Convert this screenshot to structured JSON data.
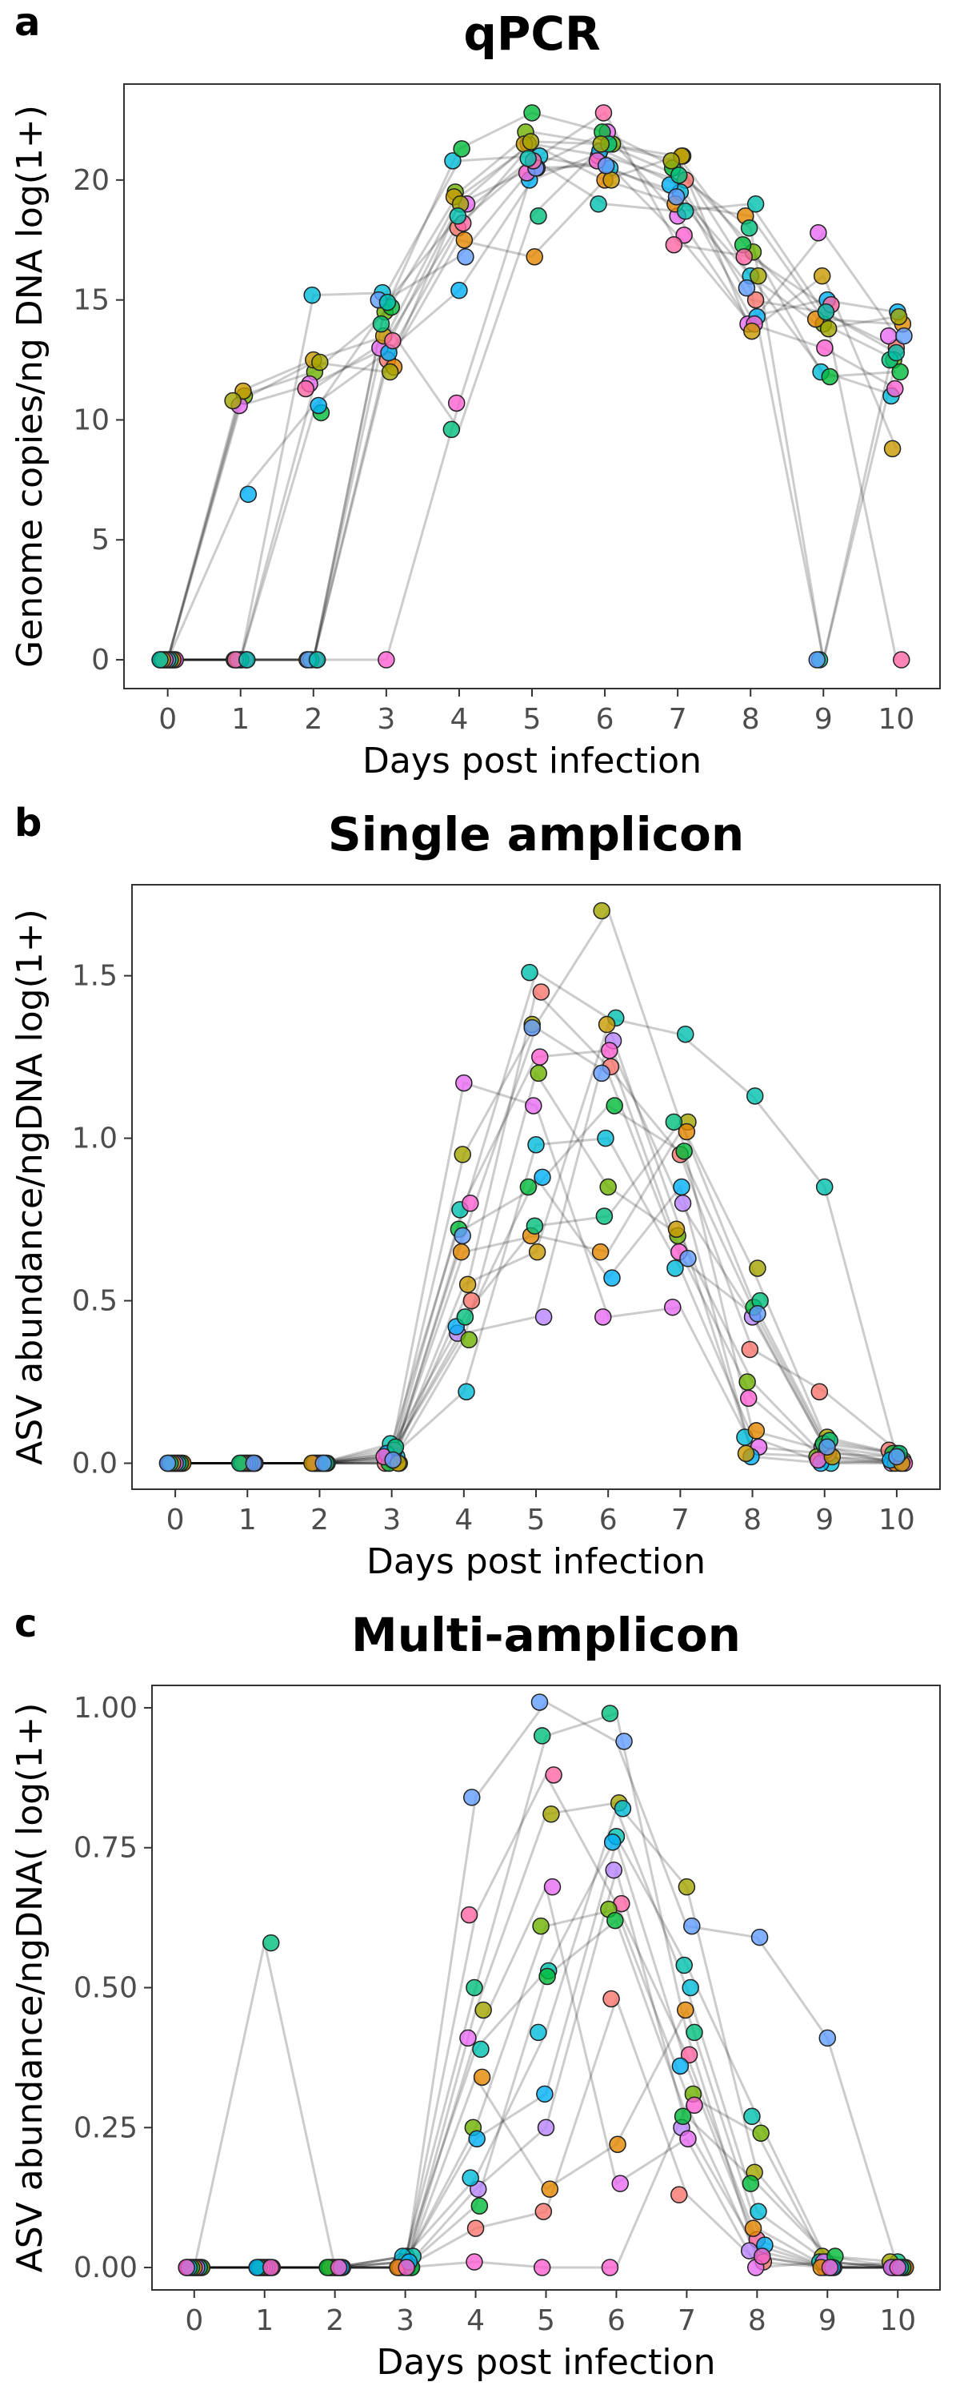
{
  "panels": [
    {
      "letter": "a",
      "title": "qPCR"
    },
    {
      "letter": "b",
      "title": "Single amplicon"
    },
    {
      "letter": "c",
      "title": "Multi-amplicon"
    }
  ],
  "palette": [
    "#f8766d",
    "#e58700",
    "#c99800",
    "#a3a500",
    "#6bb100",
    "#00ba38",
    "#00bf7d",
    "#00c0af",
    "#00bcd8",
    "#00b0f6",
    "#619cff",
    "#b983ff",
    "#e76bf3",
    "#fd61d1",
    "#ff67a4"
  ],
  "chart_data": [
    {
      "type": "line",
      "title": "qPCR",
      "xlabel": "Days post infection",
      "ylabel": "Genome copies/ng DNA log(1+)",
      "xlim": [
        -0.6,
        10.6
      ],
      "ylim": [
        -1.2,
        24
      ],
      "xticks": [
        0,
        1,
        2,
        3,
        4,
        5,
        6,
        7,
        8,
        9,
        10
      ],
      "yticks": [
        0,
        5,
        10,
        15,
        20
      ],
      "ytick_labels": [
        "0",
        "5",
        "10",
        "15",
        "20"
      ],
      "grid": false,
      "legend": "none",
      "x": [
        0,
        1,
        2,
        3,
        4,
        5,
        6,
        7,
        8,
        9,
        10
      ],
      "series": [
        {
          "values": [
            0,
            0,
            0,
            12.5,
            18.0,
            21.5,
            21.0,
            20.0,
            15.0,
            14.5,
            13.0
          ]
        },
        {
          "values": [
            0,
            11.0,
            12.0,
            14.5,
            19.5,
            22.0,
            21.5,
            21.0,
            17.0,
            14.0,
            12.5
          ]
        },
        {
          "values": [
            0,
            0,
            15.2,
            15.3,
            20.8,
            21.0,
            20.5,
            19.5,
            16.0,
            12.0,
            11.0
          ]
        },
        {
          "values": [
            0,
            10.6,
            11.5,
            13.0,
            19.0,
            20.5,
            22.0,
            18.5,
            14.0,
            17.8,
            13.5
          ]
        },
        {
          "values": [
            0,
            0,
            0,
            12.2,
            17.5,
            16.8,
            20.0,
            19.0,
            18.5,
            14.2,
            14.0
          ]
        },
        {
          "values": [
            0,
            0,
            10.3,
            14.7,
            21.3,
            22.8,
            22.0,
            20.5,
            17.3,
            11.8,
            12.0
          ]
        },
        {
          "values": [
            0,
            6.9,
            10.6,
            12.8,
            15.4,
            20.0,
            21.2,
            19.8,
            14.3,
            15.0,
            14.5
          ]
        },
        {
          "values": [
            0,
            0,
            0,
            0,
            10.7,
            20.3,
            20.8,
            17.7,
            14.0,
            13.0,
            11.3
          ]
        },
        {
          "values": [
            0,
            11.2,
            12.5,
            13.5,
            19.3,
            21.5,
            20.0,
            21.0,
            13.7,
            16.0,
            8.8
          ]
        },
        {
          "values": [
            0,
            0,
            0,
            14.0,
            9.6,
            18.5,
            21.5,
            20.2,
            18.0,
            0,
            12.5
          ]
        },
        {
          "values": [
            0,
            0,
            0,
            15.0,
            16.8,
            20.5,
            20.6,
            19.3,
            15.5,
            0,
            13.5
          ]
        },
        {
          "values": [
            0,
            0,
            11.3,
            13.3,
            18.2,
            20.8,
            22.8,
            17.3,
            16.8,
            14.8,
            0
          ]
        },
        {
          "values": [
            0,
            10.8,
            12.4,
            12.0,
            19.0,
            21.6,
            21.5,
            20.8,
            16.0,
            13.8,
            14.3
          ]
        },
        {
          "values": [
            0,
            0,
            0,
            14.9,
            18.5,
            20.9,
            19.0,
            18.7,
            19.0,
            14.5,
            12.8
          ]
        }
      ]
    },
    {
      "type": "line",
      "title": "Single amplicon",
      "xlabel": "Days post infection",
      "ylabel": "ASV abundance/ngDNA log(1+)",
      "xlim": [
        -0.6,
        10.6
      ],
      "ylim": [
        -0.08,
        1.78
      ],
      "xticks": [
        0,
        1,
        2,
        3,
        4,
        5,
        6,
        7,
        8,
        9,
        10
      ],
      "yticks": [
        0,
        0.5,
        1.0,
        1.5
      ],
      "ytick_labels": [
        "0.0",
        "0.5",
        "1.0",
        "1.5"
      ],
      "grid": false,
      "legend": "none",
      "x": [
        0,
        1,
        2,
        3,
        4,
        5,
        6,
        7,
        8,
        9,
        10
      ],
      "series": [
        {
          "values": [
            0,
            0,
            0,
            0.02,
            0.95,
            1.35,
            1.7,
            1.05,
            0.6,
            0.08,
            0.03
          ]
        },
        {
          "values": [
            0,
            0,
            0,
            0.06,
            0.78,
            1.51,
            1.37,
            1.32,
            1.13,
            0.85,
            0.02
          ]
        },
        {
          "values": [
            0,
            0,
            0,
            0.03,
            0.4,
            0.45,
            1.3,
            0.8,
            0.45,
            0.05,
            0.0
          ]
        },
        {
          "values": [
            0,
            0,
            0,
            0.0,
            0.5,
            1.45,
            1.22,
            0.95,
            0.35,
            0.22,
            0.04
          ]
        },
        {
          "values": [
            0,
            0,
            0,
            0.0,
            0.38,
            1.2,
            0.85,
            0.7,
            0.25,
            0.02,
            0.01
          ]
        },
        {
          "values": [
            0,
            0,
            0,
            0.02,
            0.22,
            0.98,
            1.0,
            0.6,
            0.08,
            0.0,
            0.0
          ]
        },
        {
          "values": [
            0,
            0,
            0,
            0.04,
            1.17,
            1.1,
            0.45,
            0.48,
            0.05,
            0.03,
            0.02
          ]
        },
        {
          "values": [
            0,
            0,
            0,
            0.01,
            0.65,
            0.7,
            0.65,
            1.02,
            0.1,
            0.04,
            0.0
          ]
        },
        {
          "values": [
            0,
            0,
            0,
            0.0,
            0.72,
            0.85,
            1.1,
            0.96,
            0.48,
            0.06,
            0.03
          ]
        },
        {
          "values": [
            0,
            0,
            0,
            0.03,
            0.42,
            0.88,
            0.57,
            0.85,
            0.02,
            0.0,
            0.01
          ]
        },
        {
          "values": [
            0,
            0,
            0,
            0.02,
            0.8,
            1.25,
            1.27,
            0.65,
            0.2,
            0.01,
            0.0
          ]
        },
        {
          "values": [
            0,
            0,
            0,
            0.0,
            0.55,
            0.65,
            1.35,
            0.72,
            0.03,
            0.02,
            0.0
          ]
        },
        {
          "values": [
            0,
            0,
            0,
            0.05,
            0.45,
            0.73,
            0.76,
            1.05,
            0.5,
            0.07,
            0.03
          ]
        },
        {
          "values": [
            0,
            0,
            0,
            0.01,
            0.7,
            1.34,
            1.2,
            0.63,
            0.46,
            0.05,
            0.02
          ]
        }
      ]
    },
    {
      "type": "line",
      "title": "Multi-amplicon",
      "xlabel": "Days post infection",
      "ylabel": "ASV abundance/ngDNA( log(1+)",
      "xlim": [
        -0.6,
        10.6
      ],
      "ylim": [
        -0.04,
        1.04
      ],
      "xticks": [
        0,
        1,
        2,
        3,
        4,
        5,
        6,
        7,
        8,
        9,
        10
      ],
      "yticks": [
        0,
        0.25,
        0.5,
        0.75,
        1.0
      ],
      "ytick_labels": [
        "0.00",
        "0.25",
        "0.50",
        "0.75",
        "1.00"
      ],
      "grid": false,
      "legend": "none",
      "x": [
        0,
        1,
        2,
        3,
        4,
        5,
        6,
        7,
        8,
        9,
        10
      ],
      "series": [
        {
          "values": [
            0,
            0.58,
            0,
            0.02,
            0.5,
            0.95,
            0.99,
            0.42,
            0.02,
            0.0,
            0.01
          ]
        },
        {
          "values": [
            0,
            0,
            0,
            0.0,
            0.84,
            1.01,
            0.94,
            0.61,
            0.59,
            0.41,
            0.0
          ]
        },
        {
          "values": [
            0,
            0,
            0,
            0.01,
            0.63,
            0.88,
            0.65,
            0.38,
            0.05,
            0.0,
            0.0
          ]
        },
        {
          "values": [
            0,
            0,
            0,
            0.0,
            0.46,
            0.81,
            0.83,
            0.68,
            0.17,
            0.02,
            0.01
          ]
        },
        {
          "values": [
            0,
            0,
            0,
            0.02,
            0.39,
            0.53,
            0.77,
            0.54,
            0.27,
            0.01,
            0.0
          ]
        },
        {
          "values": [
            0,
            0,
            0,
            0.0,
            0.14,
            0.25,
            0.71,
            0.25,
            0.03,
            0.0,
            0.0
          ]
        },
        {
          "values": [
            0,
            0,
            0,
            0.0,
            0.07,
            0.1,
            0.48,
            0.13,
            0.01,
            0.0,
            0.0
          ]
        },
        {
          "values": [
            0,
            0,
            0,
            0.01,
            0.25,
            0.61,
            0.64,
            0.31,
            0.24,
            0.0,
            0.0
          ]
        },
        {
          "values": [
            0,
            0,
            0,
            0.02,
            0.16,
            0.42,
            0.82,
            0.5,
            0.1,
            0.01,
            0.0
          ]
        },
        {
          "values": [
            0,
            0,
            0,
            0.0,
            0.41,
            0.68,
            0.15,
            0.23,
            0.0,
            0.01,
            0.0
          ]
        },
        {
          "values": [
            0,
            0,
            0,
            0.0,
            0.34,
            0.14,
            0.22,
            0.46,
            0.07,
            0.0,
            0.0
          ]
        },
        {
          "values": [
            0,
            0,
            0,
            0.0,
            0.11,
            0.52,
            0.62,
            0.27,
            0.15,
            0.02,
            0.0
          ]
        },
        {
          "values": [
            0,
            0,
            0,
            0.01,
            0.23,
            0.31,
            0.76,
            0.36,
            0.04,
            0.0,
            0.0
          ]
        },
        {
          "values": [
            0,
            0,
            0,
            0.0,
            0.01,
            0.0,
            0.0,
            0.29,
            0.02,
            0.0,
            0.0
          ]
        }
      ]
    }
  ]
}
